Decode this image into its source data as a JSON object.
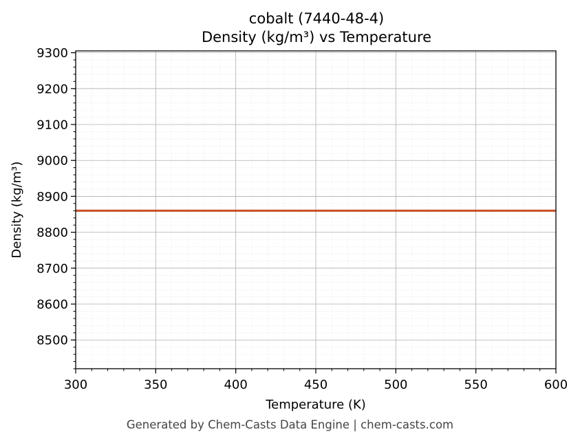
{
  "chart_data": {
    "type": "line",
    "title": "cobalt (7440-48-4)",
    "subtitle": "Density (kg/m³) vs Temperature",
    "xlabel": "Temperature (K)",
    "ylabel": "Density (kg/m³)",
    "xlim": [
      300,
      600
    ],
    "ylim": [
      8420,
      9305
    ],
    "x_ticks": [
      300,
      350,
      400,
      450,
      500,
      550,
      600
    ],
    "y_ticks": [
      8500,
      8600,
      8700,
      8800,
      8900,
      9000,
      9100,
      9200,
      9300
    ],
    "grid": true,
    "minor_grid": true,
    "series": [
      {
        "x": [
          300,
          600
        ],
        "y": [
          8860,
          8860
        ],
        "color": "#c8522a"
      }
    ]
  },
  "footer": "Generated by Chem-Casts Data Engine | chem-casts.com"
}
